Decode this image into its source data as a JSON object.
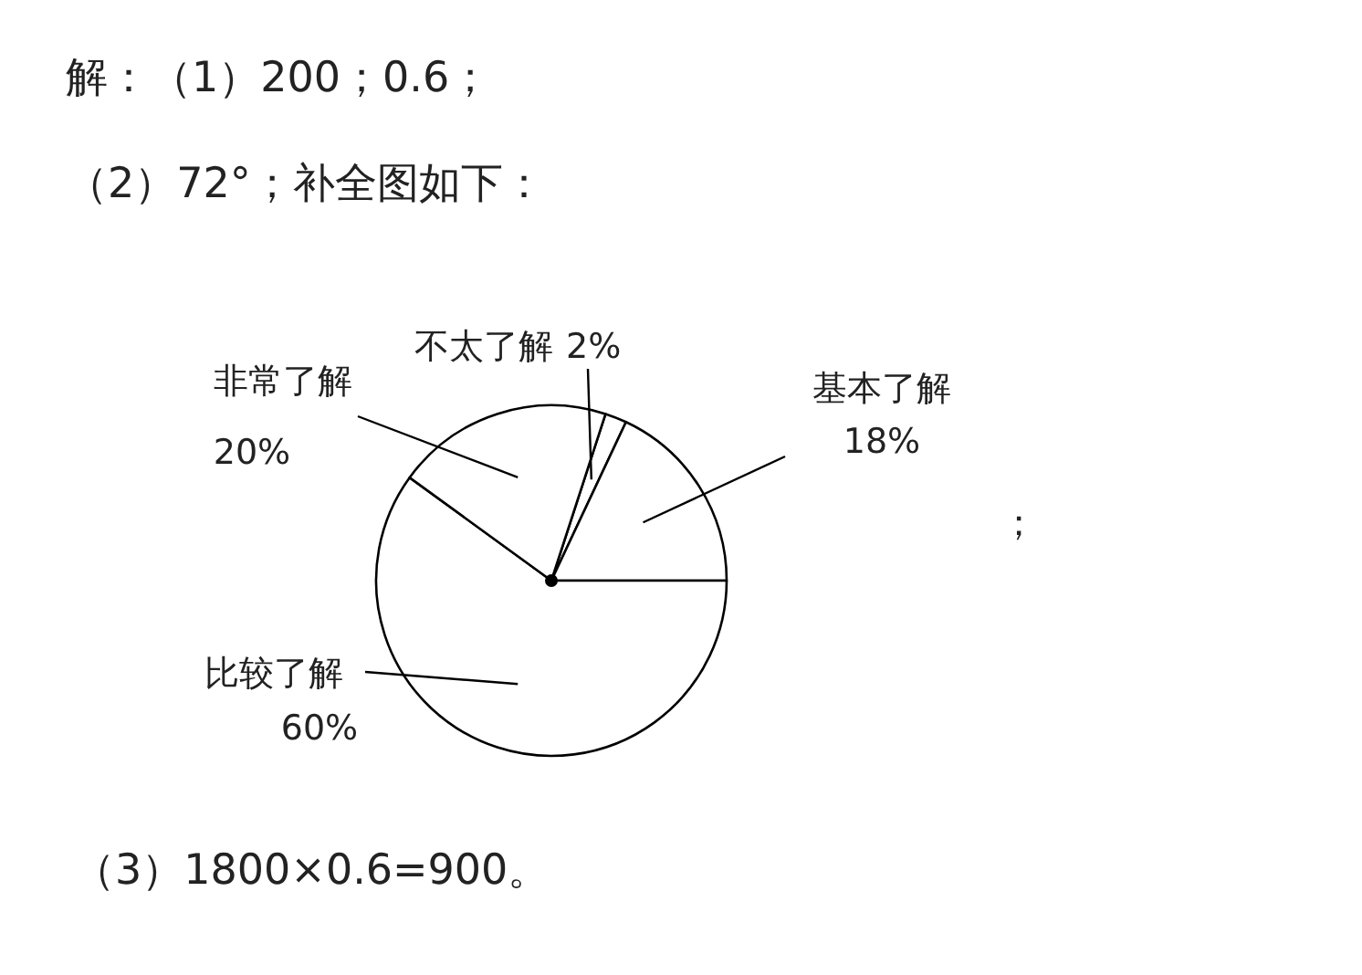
{
  "chart_data": {
    "type": "pie",
    "categories": [
      "不太了解",
      "基本了解",
      "比较了解",
      "非常了解"
    ],
    "values": [
      2,
      18,
      60,
      20
    ],
    "colors": [
      "#ffffff",
      "#ffffff",
      "#ffffff",
      "#ffffff"
    ],
    "value_labels": [
      "2%",
      "18%",
      "60%",
      "20%"
    ],
    "annotations": [
      "解：（1）200；0.6；",
      "（2）72°；补全图如下：",
      "；",
      "（3）1800×0.6=900。"
    ]
  }
}
